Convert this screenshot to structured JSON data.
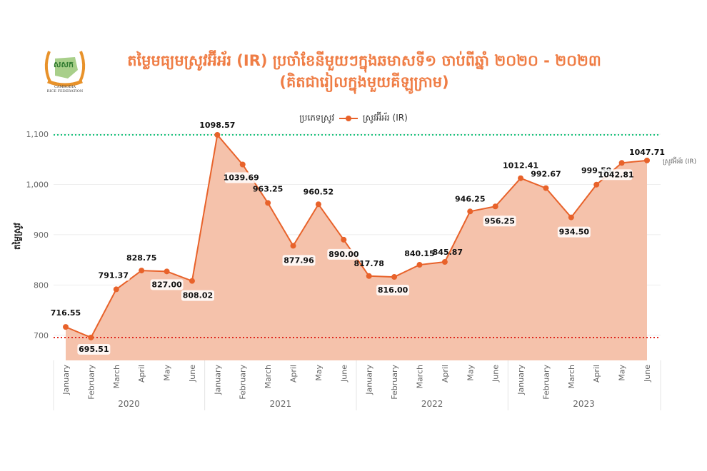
{
  "logo": {
    "text_top": "សសក",
    "text_bottom1": "CAMBODIA",
    "text_bottom2": "RICE FEDERATION"
  },
  "title": {
    "line1": "តម្លៃមធ្យមស្រូវអ៊ីអ័រ (IR) ប្រចាំខែនីមួយៗក្នុងឆមាសទី១ ចាប់ពីឆ្នាំ ២០២០ - ២០២៣",
    "line2": "(គិតជារៀលក្នុងមួយគីឡូក្រាម)"
  },
  "colors": {
    "title": "#ef7d45",
    "line": "#e8622a",
    "area": "#f4bfa6",
    "max_line": "#17c27a",
    "min_line": "#e0261d"
  },
  "chart_data": {
    "type": "area",
    "legend_title": "ប្រភេទស្រូវ",
    "legend_position": "top-center",
    "ylabel": "តម្លៃស្រូវ",
    "ylim": [
      650,
      1100
    ],
    "yticks": [
      700,
      800,
      900,
      1000,
      1100
    ],
    "ytick_labels": [
      "700",
      "800",
      "900",
      "1,000",
      "1,100"
    ],
    "groups": [
      "2020",
      "2021",
      "2022",
      "2023"
    ],
    "months": [
      "January",
      "February",
      "March",
      "April",
      "May",
      "June"
    ],
    "reference_lines": {
      "max": 1098.57,
      "min": 695.51
    },
    "series": [
      {
        "name": "ស្រូវអ៊ីអ័រ (IR)",
        "end_label": "ស្រូវអ៊ីអ័រ (IR)",
        "values": [
          716.55,
          695.51,
          791.37,
          828.75,
          827.0,
          808.02,
          1098.57,
          1039.69,
          963.25,
          877.96,
          960.52,
          890.0,
          817.78,
          816.0,
          840.15,
          845.87,
          946.25,
          956.25,
          1012.41,
          992.67,
          934.5,
          999.59,
          1042.81,
          1047.71
        ],
        "labels": [
          "716.55",
          "695.51",
          "791.37",
          "828.75",
          "827.00",
          "808.02",
          "1098.57",
          "1039.69",
          "963.25",
          "877.96",
          "960.52",
          "890.00",
          "817.78",
          "816.00",
          "840.15",
          "845.87",
          "946.25",
          "956.25",
          "1012.41",
          "992.67",
          "934.50",
          "999.59",
          "1042.81",
          "1047.71"
        ]
      }
    ]
  }
}
